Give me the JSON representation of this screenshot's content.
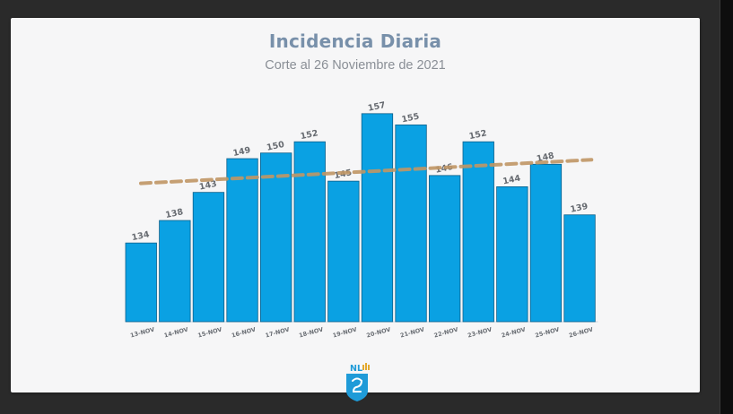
{
  "chart_data": {
    "type": "bar",
    "title": "Incidencia Diaria",
    "subtitle": "Corte al 26 Noviembre de 2021",
    "categories": [
      "13-NOV",
      "14-NOV",
      "15-NOV",
      "16-NOV",
      "17-NOV",
      "18-NOV",
      "19-NOV",
      "20-NOV",
      "21-NOV",
      "22-NOV",
      "23-NOV",
      "24-NOV",
      "25-NOV",
      "26-NOV"
    ],
    "values": [
      134,
      138,
      143,
      149,
      150,
      152,
      145,
      157,
      155,
      146,
      152,
      144,
      148,
      139
    ],
    "trendline": {
      "start": 144.6,
      "end": 148.8,
      "style": "dashed"
    },
    "ylim": [
      120,
      160
    ],
    "grid": false,
    "colors": {
      "bar": "#0aa1e3",
      "trend": "#c09665",
      "title": "#7890aa",
      "subtitle": "#8a8f96",
      "labels": "#666a70"
    }
  },
  "logo": {
    "text": "NL"
  }
}
